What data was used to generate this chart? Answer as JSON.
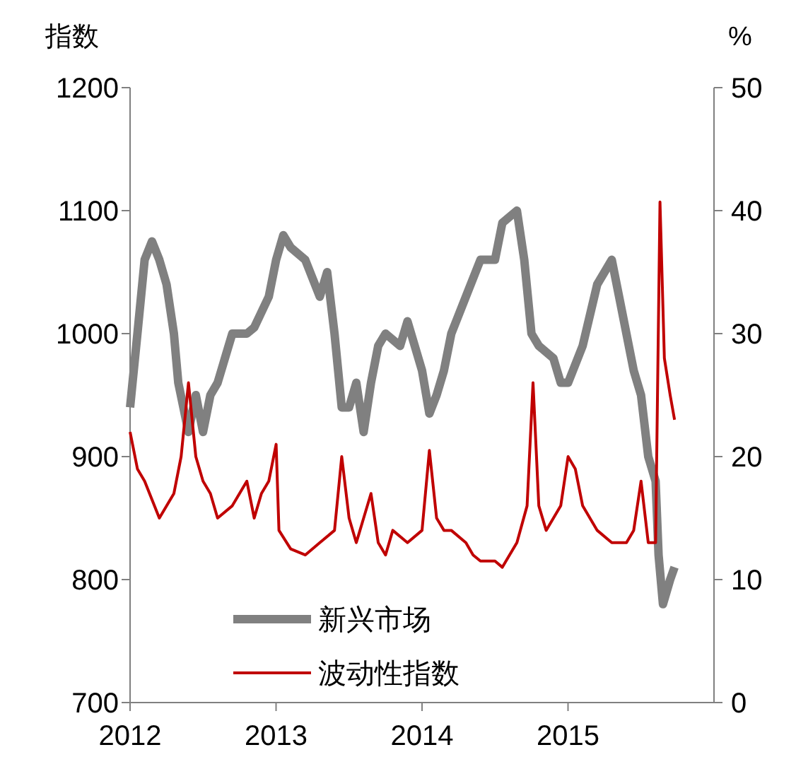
{
  "chart_data": {
    "type": "line",
    "ylabel": "指数",
    "y2label": "%",
    "xlim": [
      2012,
      2016
    ],
    "xticks": [
      2012,
      2013,
      2014,
      2015
    ],
    "ylim": [
      700,
      1200
    ],
    "yticks": [
      700,
      800,
      900,
      1000,
      1100,
      1200
    ],
    "y2lim": [
      0,
      50
    ],
    "y2ticks": [
      0,
      10,
      20,
      30,
      40,
      50
    ],
    "legend": "bottom",
    "grid": false,
    "line_style": "solid",
    "series": [
      {
        "name": "新兴市场",
        "color": "#808080",
        "x": [
          2012.0,
          2012.05,
          2012.1,
          2012.15,
          2012.2,
          2012.25,
          2012.3,
          2012.33,
          2012.4,
          2012.45,
          2012.5,
          2012.55,
          2012.6,
          2012.65,
          2012.7,
          2012.8,
          2012.85,
          2012.95,
          2013.0,
          2013.05,
          2013.1,
          2013.2,
          2013.3,
          2013.35,
          2013.4,
          2013.45,
          2013.5,
          2013.55,
          2013.6,
          2013.65,
          2013.7,
          2013.75,
          2013.85,
          2013.9,
          2014.0,
          2014.05,
          2014.1,
          2014.15,
          2014.2,
          2014.3,
          2014.4,
          2014.5,
          2014.55,
          2014.65,
          2014.7,
          2014.75,
          2014.8,
          2014.9,
          2014.95,
          2015.0,
          2015.1,
          2015.2,
          2015.3,
          2015.35,
          2015.45,
          2015.5,
          2015.55,
          2015.6,
          2015.62,
          2015.65,
          2015.7,
          2015.73
        ],
        "values": [
          940,
          1000,
          1060,
          1075,
          1060,
          1040,
          1000,
          960,
          920,
          950,
          920,
          950,
          960,
          980,
          1000,
          1000,
          1005,
          1030,
          1060,
          1080,
          1070,
          1060,
          1030,
          1050,
          1000,
          940,
          940,
          960,
          920,
          960,
          990,
          1000,
          990,
          1010,
          970,
          935,
          950,
          970,
          1000,
          1030,
          1060,
          1060,
          1090,
          1100,
          1060,
          1000,
          990,
          980,
          960,
          960,
          990,
          1040,
          1060,
          1030,
          970,
          950,
          900,
          880,
          820,
          780,
          800,
          810
        ]
      },
      {
        "name": "波动性指数",
        "color": "#c00000",
        "axis": "y2",
        "x": [
          2012.0,
          2012.05,
          2012.1,
          2012.2,
          2012.3,
          2012.35,
          2012.4,
          2012.45,
          2012.5,
          2012.55,
          2012.6,
          2012.7,
          2012.8,
          2012.85,
          2012.9,
          2012.95,
          2013.0,
          2013.02,
          2013.1,
          2013.2,
          2013.3,
          2013.4,
          2013.45,
          2013.5,
          2013.55,
          2013.6,
          2013.65,
          2013.7,
          2013.75,
          2013.8,
          2013.9,
          2014.0,
          2014.05,
          2014.1,
          2014.15,
          2014.2,
          2014.3,
          2014.35,
          2014.4,
          2014.5,
          2014.55,
          2014.6,
          2014.65,
          2014.72,
          2014.76,
          2014.8,
          2014.85,
          2014.95,
          2015.0,
          2015.05,
          2015.1,
          2015.2,
          2015.3,
          2015.4,
          2015.45,
          2015.5,
          2015.55,
          2015.6,
          2015.63,
          2015.66,
          2015.7,
          2015.73
        ],
        "values": [
          22,
          19,
          18,
          15,
          17,
          20,
          26,
          20,
          18,
          17,
          15,
          16,
          18,
          15,
          17,
          18,
          21,
          14,
          12.5,
          12,
          13,
          14,
          20,
          15,
          13,
          15,
          17,
          13,
          12,
          14,
          13,
          14,
          20.5,
          15,
          14,
          14,
          13,
          12,
          11.5,
          11.5,
          11,
          12,
          13,
          16,
          26,
          16,
          14,
          16,
          20,
          19,
          16,
          14,
          13,
          13,
          14,
          18,
          13,
          13,
          40.7,
          28,
          25,
          23
        ]
      }
    ]
  }
}
